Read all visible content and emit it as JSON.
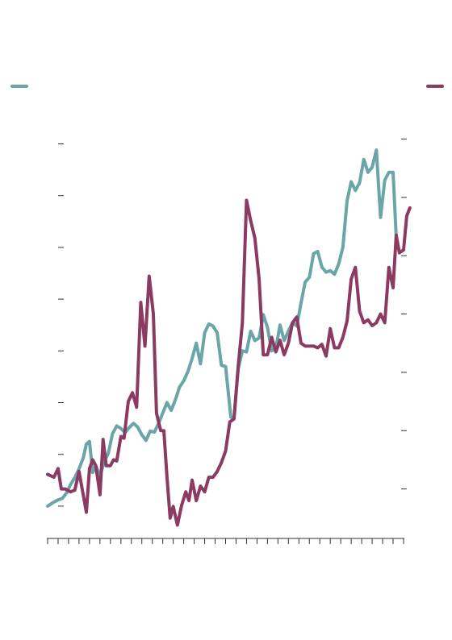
{
  "chart_data": {
    "type": "line",
    "title": "",
    "xlabel": "",
    "ylabel": "",
    "grid": false,
    "legend": "top-left-and-top-right",
    "axes": {
      "left": {
        "ticks": [
          0,
          1,
          2,
          3,
          4,
          5,
          6,
          7
        ],
        "ylim": [
          -0.5,
          7.6
        ]
      },
      "right": {
        "ticks": [
          0,
          1,
          2,
          3,
          4,
          5,
          6
        ],
        "ylim": [
          -0.6,
          6.45
        ]
      },
      "x": {
        "tick_count": 34,
        "xlim": [
          0,
          34
        ]
      }
    },
    "series": [
      {
        "axis": "left",
        "color": "#6aa5a8",
        "points": [
          [
            0.0,
            0.0
          ],
          [
            0.6,
            0.08
          ],
          [
            1.0,
            0.12
          ],
          [
            1.4,
            0.15
          ],
          [
            1.8,
            0.25
          ],
          [
            2.2,
            0.42
          ],
          [
            2.6,
            0.55
          ],
          [
            3.0,
            0.72
          ],
          [
            3.4,
            0.93
          ],
          [
            3.7,
            1.2
          ],
          [
            4.0,
            1.25
          ],
          [
            4.3,
            0.65
          ],
          [
            4.6,
            0.78
          ],
          [
            5.0,
            0.58
          ],
          [
            5.4,
            0.85
          ],
          [
            5.8,
            1.02
          ],
          [
            6.2,
            1.4
          ],
          [
            6.6,
            1.55
          ],
          [
            7.0,
            1.5
          ],
          [
            7.4,
            1.42
          ],
          [
            7.8,
            1.52
          ],
          [
            8.2,
            1.6
          ],
          [
            8.6,
            1.53
          ],
          [
            9.0,
            1.38
          ],
          [
            9.4,
            1.27
          ],
          [
            9.8,
            1.45
          ],
          [
            10.2,
            1.43
          ],
          [
            10.6,
            1.6
          ],
          [
            11.0,
            1.8
          ],
          [
            11.4,
            2.0
          ],
          [
            11.8,
            1.85
          ],
          [
            12.2,
            2.05
          ],
          [
            12.6,
            2.3
          ],
          [
            13.0,
            2.42
          ],
          [
            13.4,
            2.6
          ],
          [
            13.8,
            2.85
          ],
          [
            14.2,
            3.15
          ],
          [
            14.6,
            2.75
          ],
          [
            15.0,
            3.35
          ],
          [
            15.4,
            3.52
          ],
          [
            15.8,
            3.48
          ],
          [
            16.2,
            3.35
          ],
          [
            16.6,
            2.72
          ],
          [
            17.0,
            2.7
          ],
          [
            17.5,
            1.72
          ],
          [
            17.8,
            1.7
          ],
          [
            18.2,
            2.65
          ],
          [
            18.6,
            3.0
          ],
          [
            19.0,
            2.98
          ],
          [
            19.4,
            3.38
          ],
          [
            19.8,
            3.2
          ],
          [
            20.2,
            3.25
          ],
          [
            20.6,
            3.7
          ],
          [
            21.0,
            3.45
          ],
          [
            21.4,
            3.0
          ],
          [
            21.8,
            3.05
          ],
          [
            22.2,
            3.5
          ],
          [
            22.6,
            3.2
          ],
          [
            23.0,
            3.38
          ],
          [
            23.4,
            3.55
          ],
          [
            23.8,
            3.48
          ],
          [
            24.2,
            3.92
          ],
          [
            24.6,
            4.33
          ],
          [
            25.0,
            4.42
          ],
          [
            25.4,
            4.88
          ],
          [
            25.8,
            4.92
          ],
          [
            26.2,
            4.62
          ],
          [
            26.6,
            4.52
          ],
          [
            27.0,
            4.55
          ],
          [
            27.4,
            4.48
          ],
          [
            27.8,
            4.68
          ],
          [
            28.2,
            5.0
          ],
          [
            28.6,
            5.9
          ],
          [
            29.0,
            6.27
          ],
          [
            29.4,
            6.1
          ],
          [
            29.8,
            6.25
          ],
          [
            30.2,
            6.7
          ],
          [
            30.6,
            6.45
          ],
          [
            31.0,
            6.55
          ],
          [
            31.4,
            6.88
          ],
          [
            31.8,
            5.58
          ],
          [
            32.2,
            6.3
          ],
          [
            32.6,
            6.45
          ],
          [
            33.0,
            6.45
          ],
          [
            33.3,
            5.2
          ]
        ]
      },
      {
        "axis": "right",
        "color": "#8b3a62",
        "points": [
          [
            0.0,
            0.25
          ],
          [
            0.6,
            0.2
          ],
          [
            1.0,
            0.35
          ],
          [
            1.3,
            0.0
          ],
          [
            1.7,
            0.0
          ],
          [
            2.2,
            -0.05
          ],
          [
            2.6,
            -0.02
          ],
          [
            3.0,
            0.3
          ],
          [
            3.4,
            -0.1
          ],
          [
            3.7,
            -0.4
          ],
          [
            4.0,
            0.35
          ],
          [
            4.3,
            0.5
          ],
          [
            4.6,
            0.4
          ],
          [
            5.0,
            -0.1
          ],
          [
            5.3,
            0.85
          ],
          [
            5.6,
            0.4
          ],
          [
            6.0,
            0.4
          ],
          [
            6.3,
            0.5
          ],
          [
            6.6,
            0.48
          ],
          [
            7.0,
            0.9
          ],
          [
            7.3,
            0.87
          ],
          [
            7.7,
            1.5
          ],
          [
            8.1,
            1.65
          ],
          [
            8.5,
            1.4
          ],
          [
            8.9,
            3.2
          ],
          [
            9.3,
            2.45
          ],
          [
            9.7,
            3.65
          ],
          [
            10.1,
            3.0
          ],
          [
            10.4,
            1.3
          ],
          [
            10.8,
            1.0
          ],
          [
            11.1,
            1.0
          ],
          [
            11.4,
            0.2
          ],
          [
            11.7,
            -0.5
          ],
          [
            12.0,
            -0.3
          ],
          [
            12.4,
            -0.62
          ],
          [
            12.8,
            -0.28
          ],
          [
            13.2,
            -0.05
          ],
          [
            13.5,
            -0.2
          ],
          [
            13.8,
            0.15
          ],
          [
            14.2,
            -0.2
          ],
          [
            14.6,
            0.05
          ],
          [
            15.0,
            -0.05
          ],
          [
            15.4,
            0.2
          ],
          [
            15.8,
            0.2
          ],
          [
            16.2,
            0.3
          ],
          [
            16.6,
            0.45
          ],
          [
            17.0,
            0.65
          ],
          [
            17.4,
            1.15
          ],
          [
            17.8,
            1.2
          ],
          [
            18.2,
            2.1
          ],
          [
            18.6,
            2.85
          ],
          [
            19.0,
            4.95
          ],
          [
            19.4,
            4.6
          ],
          [
            19.8,
            4.3
          ],
          [
            20.2,
            3.6
          ],
          [
            20.6,
            2.3
          ],
          [
            21.0,
            2.3
          ],
          [
            21.4,
            2.6
          ],
          [
            21.8,
            2.35
          ],
          [
            22.2,
            2.55
          ],
          [
            22.6,
            2.3
          ],
          [
            23.0,
            2.5
          ],
          [
            23.4,
            2.85
          ],
          [
            23.8,
            2.95
          ],
          [
            24.2,
            2.5
          ],
          [
            24.6,
            2.45
          ],
          [
            25.0,
            2.45
          ],
          [
            25.4,
            2.45
          ],
          [
            25.8,
            2.42
          ],
          [
            26.2,
            2.48
          ],
          [
            26.6,
            2.28
          ],
          [
            27.0,
            2.75
          ],
          [
            27.4,
            2.42
          ],
          [
            27.8,
            2.42
          ],
          [
            28.2,
            2.6
          ],
          [
            28.6,
            2.88
          ],
          [
            29.0,
            3.6
          ],
          [
            29.4,
            3.8
          ],
          [
            29.8,
            3.05
          ],
          [
            30.2,
            2.85
          ],
          [
            30.6,
            2.9
          ],
          [
            31.0,
            2.8
          ],
          [
            31.4,
            2.85
          ],
          [
            31.8,
            3.0
          ],
          [
            32.2,
            2.85
          ],
          [
            32.6,
            3.8
          ],
          [
            33.0,
            3.45
          ],
          [
            33.3,
            4.35
          ],
          [
            33.6,
            4.05
          ],
          [
            34.0,
            4.1
          ],
          [
            34.3,
            4.68
          ],
          [
            34.6,
            4.82
          ]
        ]
      }
    ]
  },
  "colors": {
    "tick": "#333333",
    "background": "#ffffff"
  }
}
